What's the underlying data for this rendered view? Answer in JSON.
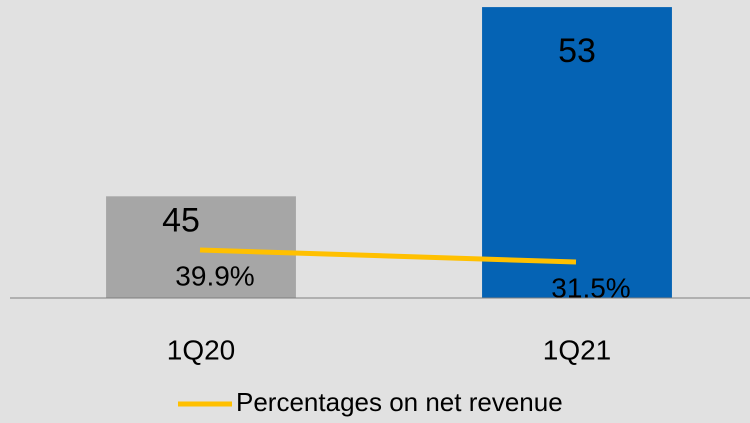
{
  "chart_data": {
    "type": "bar",
    "categories": [
      "1Q20",
      "1Q21"
    ],
    "series": [
      {
        "values": [
          45,
          53
        ],
        "colors": [
          "#a6a6a6",
          "#0563b4"
        ]
      },
      {
        "name": "Percentages on net revenue",
        "type": "line",
        "color": "#ffc000",
        "values": [
          39.9,
          31.5
        ],
        "value_labels": [
          "39.9%",
          "31.5%"
        ],
        "axis": "y2"
      }
    ],
    "ylim": [
      40.7,
      53.3
    ],
    "y2lim": [
      6.3,
      214.9
    ],
    "legend": "bottom"
  }
}
